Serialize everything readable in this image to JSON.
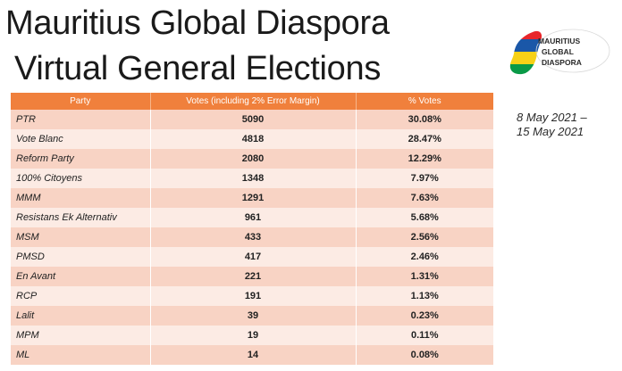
{
  "title": {
    "line1": "Mauritius Global Diaspora",
    "line2": "Virtual General Elections"
  },
  "logo": {
    "lines": [
      "MAURITIUS",
      "GLOBAL",
      "DIASPORA"
    ],
    "colors": [
      "#e8262b",
      "#1a57a8",
      "#f7d117",
      "#0a9a47"
    ]
  },
  "dates": {
    "line1": "8 May 2021 –",
    "line2": "15 May 2021"
  },
  "table": {
    "headers": [
      "Party",
      "Votes (including 2% Error Margin)",
      "% Votes"
    ],
    "rows": [
      {
        "party": "PTR",
        "votes": "5090",
        "pct": "30.08%"
      },
      {
        "party": "Vote Blanc",
        "votes": "4818",
        "pct": "28.47%"
      },
      {
        "party": "Reform Party",
        "votes": "2080",
        "pct": "12.29%"
      },
      {
        "party": "100% Citoyens",
        "votes": "1348",
        "pct": "7.97%"
      },
      {
        "party": "MMM",
        "votes": "1291",
        "pct": "7.63%"
      },
      {
        "party": "Resistans Ek Alternativ",
        "votes": "961",
        "pct": "5.68%"
      },
      {
        "party": "MSM",
        "votes": "433",
        "pct": "2.56%"
      },
      {
        "party": "PMSD",
        "votes": "417",
        "pct": "2.46%"
      },
      {
        "party": "En Avant",
        "votes": "221",
        "pct": "1.31%"
      },
      {
        "party": "RCP",
        "votes": "191",
        "pct": "1.13%"
      },
      {
        "party": "Lalit",
        "votes": "39",
        "pct": "0.23%"
      },
      {
        "party": "MPM",
        "votes": "19",
        "pct": "0.11%"
      },
      {
        "party": "ML",
        "votes": "14",
        "pct": "0.08%"
      }
    ]
  }
}
